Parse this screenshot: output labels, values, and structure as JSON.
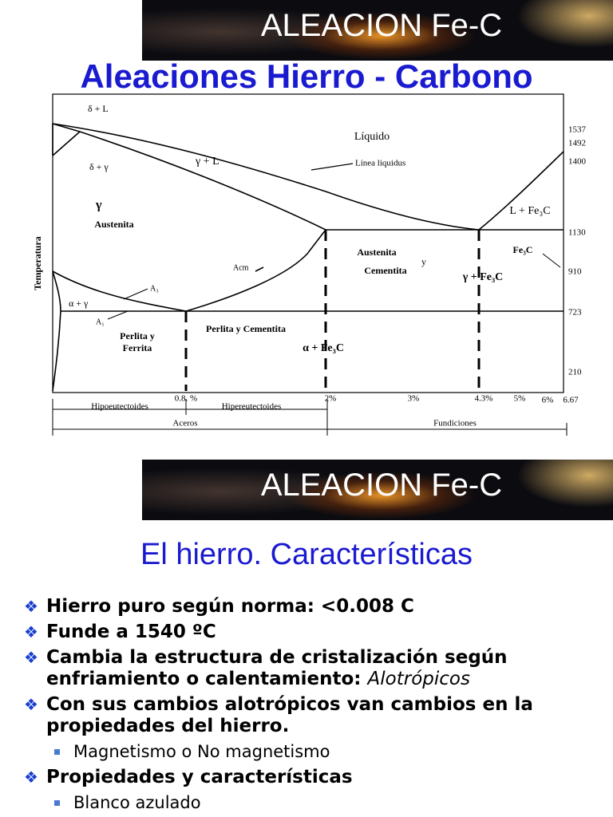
{
  "slides": [
    {
      "header": "ALEACION Fe-C",
      "title": "Aleaciones Hierro - Carbono",
      "diagram": {
        "labels": [
          "δ + L",
          "δ + γ",
          "Líquido",
          "γ + L",
          "Línea liquidus",
          "γ",
          "Austenita",
          "L + Fe₃C",
          "Austenita",
          "y",
          "Cementita",
          "γ + Fe₃C",
          "Fe₃C",
          "Acm",
          "A₃",
          "α + γ",
          "A₁",
          "Perlita y",
          "Ferrita",
          "Perlita y Cementita",
          "α + Fe₃C"
        ],
        "y_axis_label": "Temperatura",
        "temperatures": [
          "1537",
          "1492",
          "1400",
          "1130",
          "910",
          "723",
          "210"
        ],
        "compositions": [
          "0.8. %",
          "2%",
          "3%",
          "4.3%",
          "5%",
          "6%",
          "6.67"
        ],
        "ranges": [
          "Hipoeutectoides",
          "Hipereutectoides",
          "Aceros",
          "Fundiciones"
        ]
      }
    },
    {
      "header": "ALEACION Fe-C",
      "title": "El hierro. Características",
      "bullets": [
        {
          "text": "Hierro puro según norma: <0.008 C"
        },
        {
          "text": "Funde a 1540 ºC"
        },
        {
          "text": "Cambia la estructura de cristalización según enfriamiento o calentamiento:",
          "emphasis": "Alotrópicos"
        },
        {
          "text": "Con sus cambios alotrópicos van cambios en la propiedades del hierro.",
          "subitems": [
            "Magnetismo o No magnetismo"
          ]
        },
        {
          "text": "Propiedades y características",
          "subitems": [
            "Blanco azulado"
          ]
        }
      ]
    }
  ]
}
